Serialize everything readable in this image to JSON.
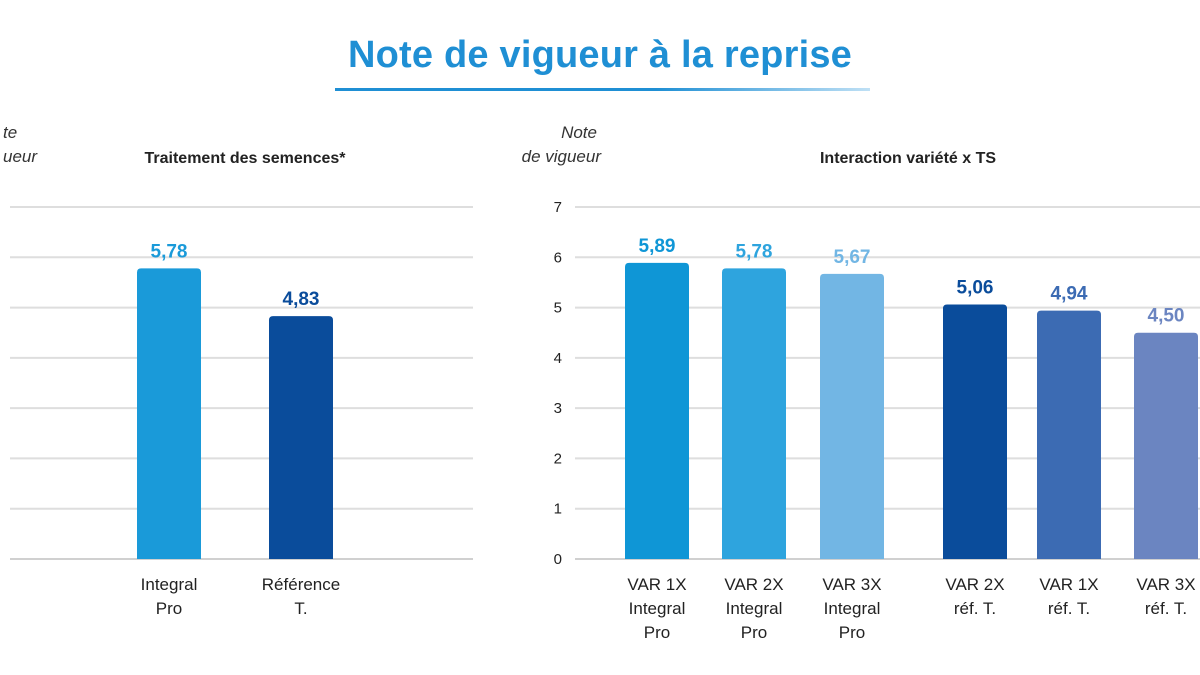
{
  "title": "Note de vigueur à la reprise",
  "colors": {
    "title": "#1f8fd4",
    "grid": "#dedede"
  },
  "chart_data": [
    {
      "type": "bar",
      "title": "Traitement des semences*",
      "ylabel_lines": [
        "Note",
        "de vigueur"
      ],
      "ylabel_visible": [
        "te",
        "ueur"
      ],
      "categories": [
        [
          "Integral",
          "Pro"
        ],
        [
          "Référence",
          "T."
        ]
      ],
      "values": [
        5.78,
        4.83
      ],
      "value_labels": [
        "5,78",
        "4,83"
      ],
      "bar_colors": [
        "#1a9ad9",
        "#0a4c9b"
      ],
      "label_colors": [
        "#1a9ad9",
        "#0a4c9b"
      ],
      "ylim": [
        0,
        7
      ],
      "grid": true
    },
    {
      "type": "bar",
      "title": "Interaction variété x TS",
      "ylabel_lines": [
        "Note",
        "de vigueur"
      ],
      "yticks": [
        "0",
        "1",
        "2",
        "3",
        "4",
        "5",
        "6",
        "7"
      ],
      "categories": [
        [
          "VAR 1X",
          "Integral",
          "Pro"
        ],
        [
          "VAR 2X",
          "Integral",
          "Pro"
        ],
        [
          "VAR 3X",
          "Integral",
          "Pro"
        ],
        [
          "VAR 2X",
          "réf. T."
        ],
        [
          "VAR 1X",
          "réf. T."
        ],
        [
          "VAR 3X",
          "réf. T."
        ]
      ],
      "values": [
        5.89,
        5.78,
        5.67,
        5.06,
        4.94,
        4.5
      ],
      "value_labels": [
        "5,89",
        "5,78",
        "5,67",
        "5,06",
        "4,94",
        "4,50"
      ],
      "bar_colors": [
        "#0f96d6",
        "#2ea4de",
        "#72b6e4",
        "#0a4c9b",
        "#3c6bb3",
        "#6b85c1"
      ],
      "label_colors": [
        "#0f96d6",
        "#2ea4de",
        "#72b6e4",
        "#0a4c9b",
        "#3c6bb3",
        "#6b85c1"
      ],
      "ylim": [
        0,
        7
      ],
      "grid": true
    }
  ]
}
